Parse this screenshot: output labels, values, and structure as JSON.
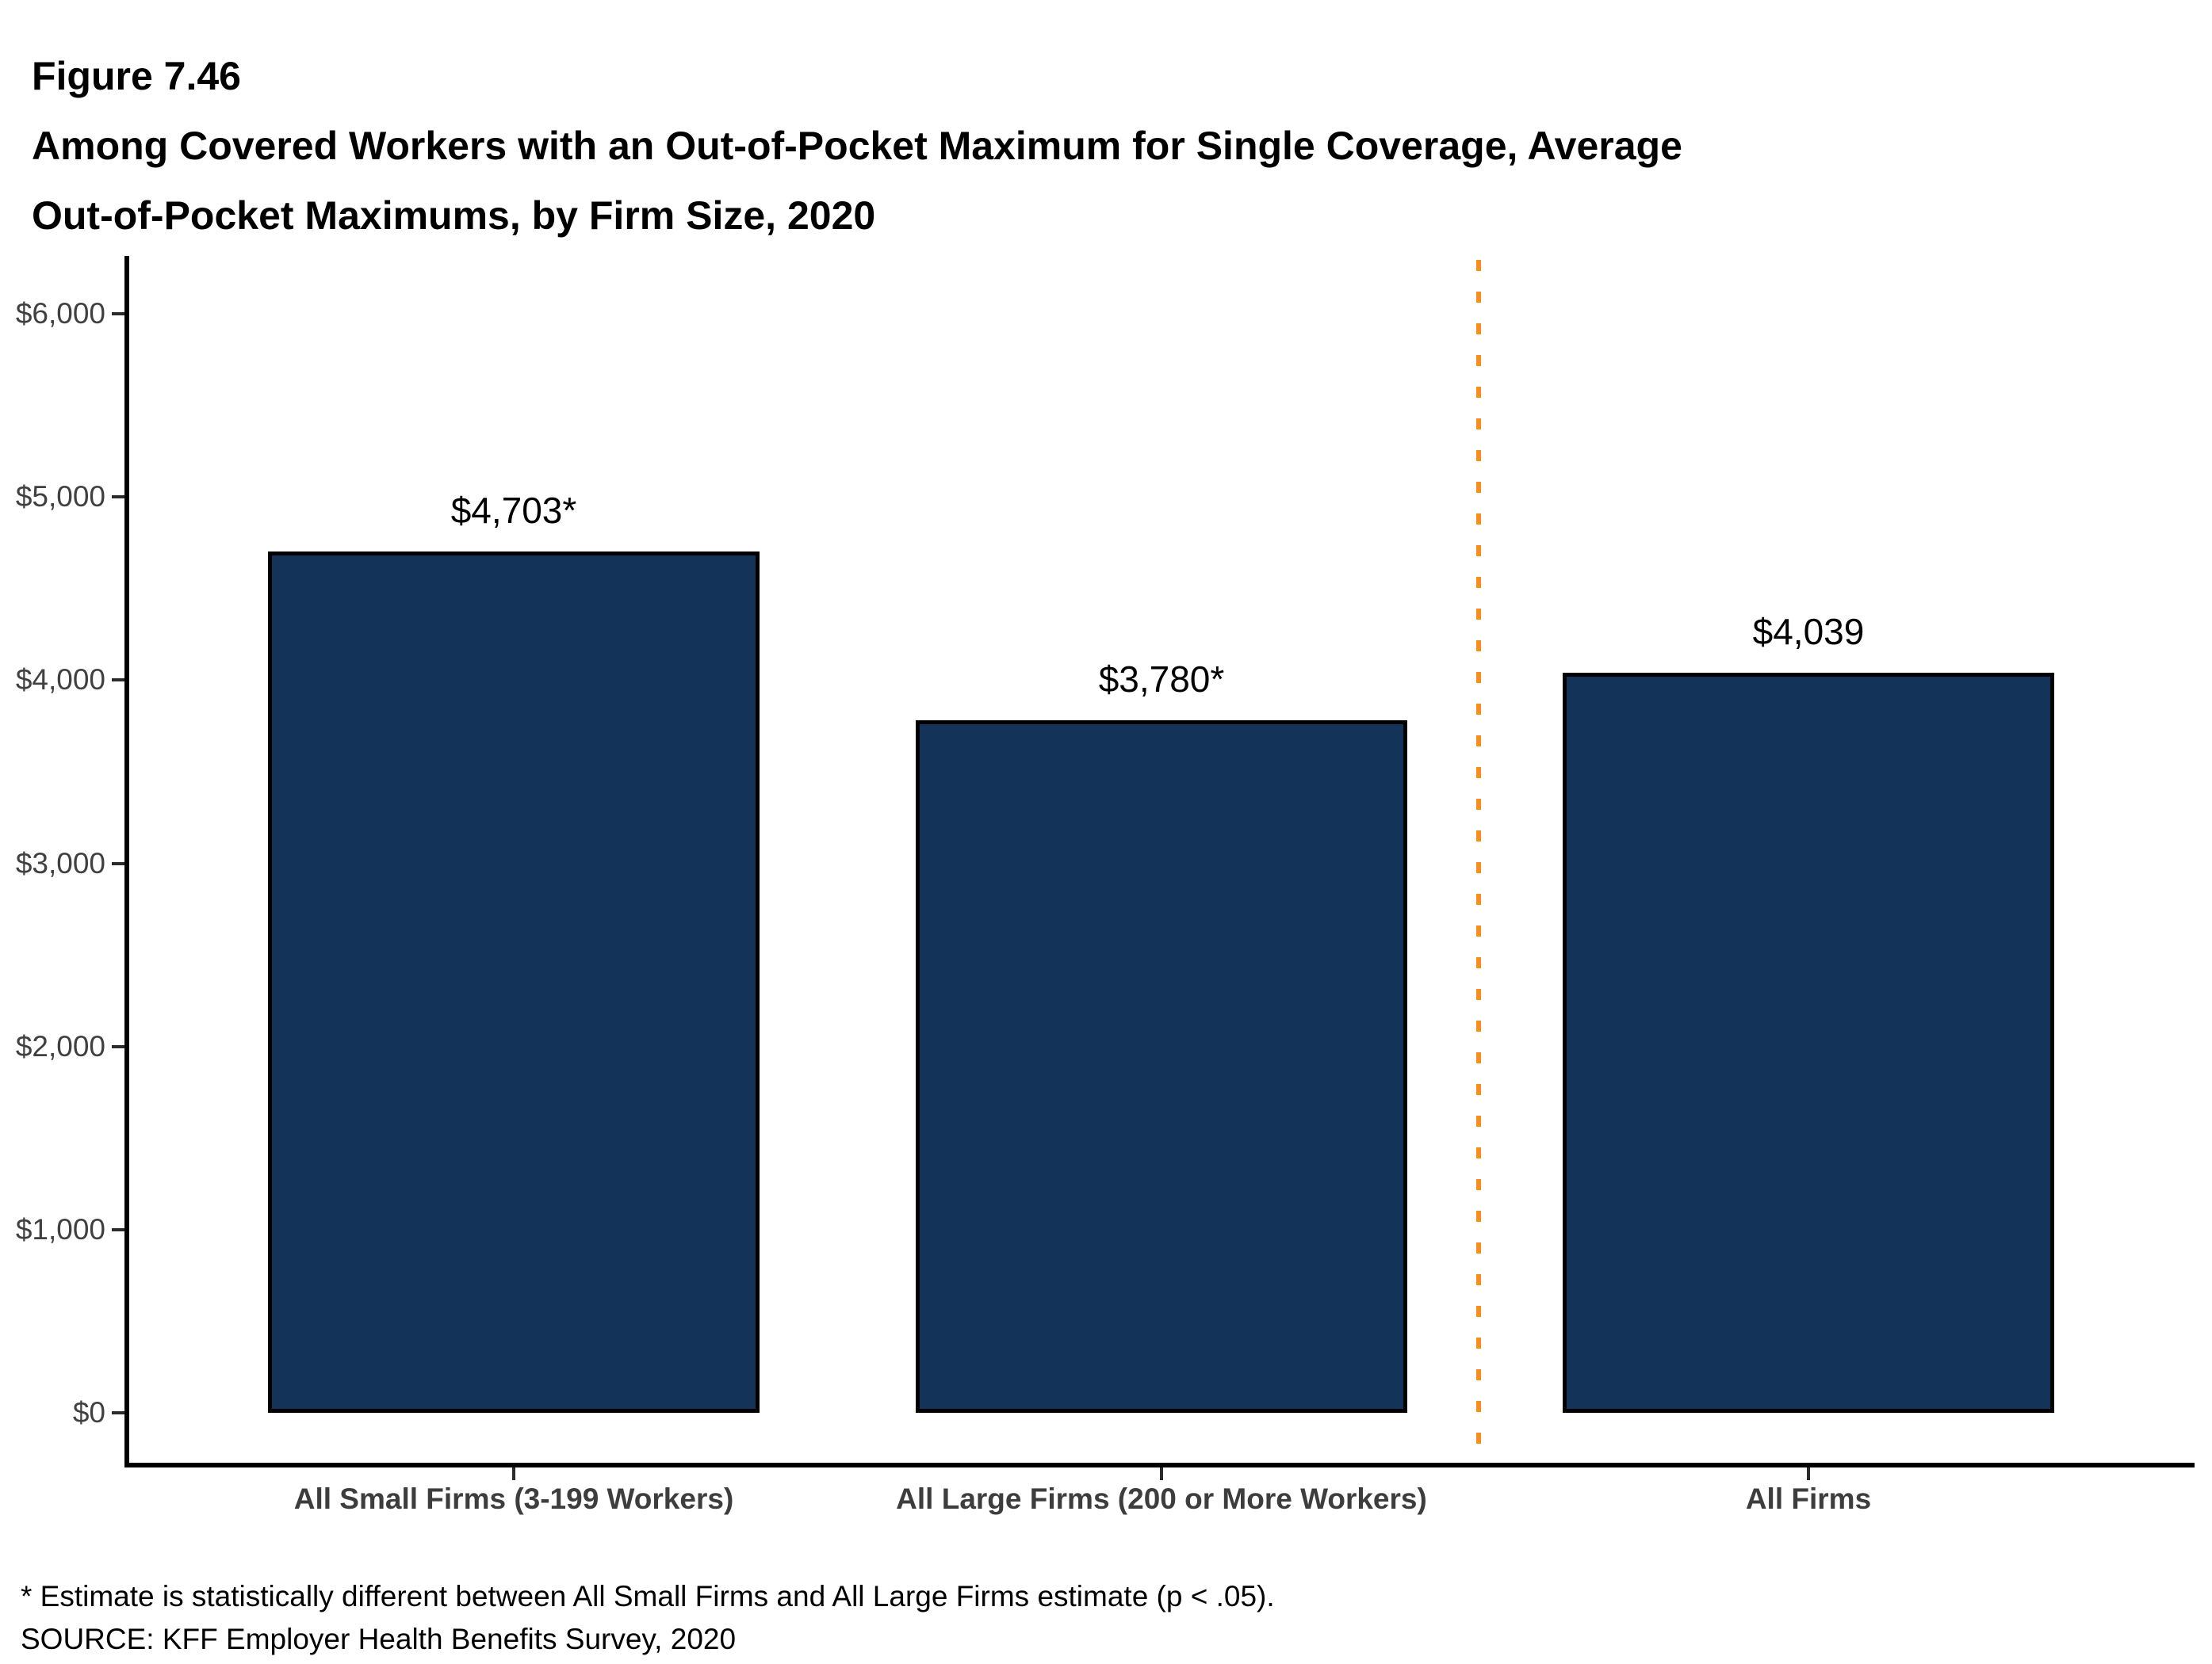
{
  "figure": {
    "number": "Figure 7.46",
    "title_lines": [
      "Among Covered Workers with an Out-of-Pocket Maximum for Single Coverage, Average",
      "Out-of-Pocket Maximums, by Firm Size, 2020"
    ]
  },
  "chart_data": {
    "type": "bar",
    "title": "Among Covered Workers with an Out-of-Pocket Maximum for Single Coverage, Average Out-of-Pocket Maximums, by Firm Size, 2020",
    "categories": [
      "All Small Firms (3-199 Workers)",
      "All Large Firms (200 or More Workers)",
      "All Firms"
    ],
    "values": [
      4703,
      3780,
      4039
    ],
    "value_labels": [
      "$4,703*",
      "$3,780*",
      "$4,039"
    ],
    "xlabel": "",
    "ylabel": "",
    "ylim": [
      0,
      6000
    ],
    "ytick_values": [
      0,
      1000,
      2000,
      3000,
      4000,
      5000,
      6000
    ],
    "ytick_labels": [
      "$0",
      "$1,000",
      "$2,000",
      "$3,000",
      "$4,000",
      "$5,000",
      "$6,000"
    ],
    "grid": "off",
    "legend": "none",
    "bar_color": "#143358",
    "bar_border_color": "#000000",
    "divider_line": {
      "between_categories": [
        "All Large Firms (200 or More Workers)",
        "All Firms"
      ],
      "style": "dashed",
      "color": "#F78F1E"
    }
  },
  "notes": [
    "* Estimate is statistically different between All Small Firms and All Large Firms estimate (p < .05).",
    "SOURCE: KFF Employer Health Benefits Survey, 2020"
  ]
}
